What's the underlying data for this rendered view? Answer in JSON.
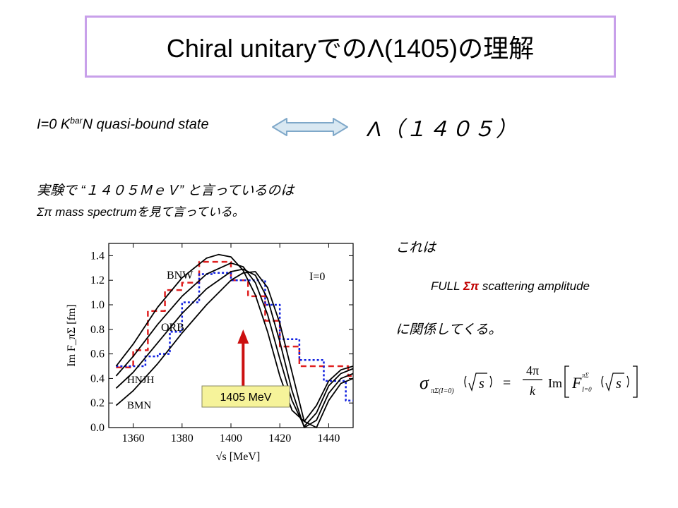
{
  "title": "Chiral unitaryでのΛ(1405)の理解",
  "state_line": {
    "prefix": "I=0 K",
    "sup": "bar",
    "suffix": "N quasi-bound state"
  },
  "lambda_label": "Λ（１４０５）",
  "experiment_line1": "実験で “１４０５ＭｅＶ” と言っているのは",
  "experiment_line2": "Σπ mass spectrumを見て言っている。",
  "kore": "これは",
  "full_prefix": "FULL ",
  "full_bold": "Σπ",
  "full_suffix": " scattering amplitude",
  "kankei": "に関係してくる。",
  "arrow_annotation": "1405 MeV",
  "colors": {
    "title_border": "#c8a0ea",
    "double_arrow_fill": "#d9e8f2",
    "double_arrow_stroke": "#7fa8c9",
    "annotation_fill": "#f6f39a",
    "red_arrow": "#cc1010",
    "series_red": "#e02020",
    "series_blue": "#1020e0"
  },
  "formula": {
    "sigma_sub": "πΣ(I=0)",
    "sqrt_s": "s",
    "eq": "=",
    "num": "4π",
    "den": "k",
    "im": "Im",
    "F": "F",
    "F_sup": "πΣ",
    "F_sub": "I=0"
  },
  "chart_data": {
    "type": "line",
    "xlabel": "√s [MeV]",
    "ylabel": "Im F_πΣ [fm]",
    "xlim": [
      1350,
      1450
    ],
    "ylim": [
      0.0,
      1.5
    ],
    "xticks": [
      1360,
      1380,
      1400,
      1420,
      1440
    ],
    "yticks": [
      0.0,
      0.2,
      0.4,
      0.6,
      0.8,
      1.0,
      1.2,
      1.4
    ],
    "xtick_labels": [
      "1360",
      "1380",
      "1400",
      "1420",
      "1440"
    ],
    "ytick_labels": [
      "0.0",
      "0.2",
      "0.4",
      "0.6",
      "0.8",
      "1.0",
      "1.2",
      "1.4"
    ],
    "annotations": [
      "BNW",
      "ORB",
      "HNJH",
      "BMN",
      "I=0"
    ],
    "series": [
      {
        "style": "dashed-red-step",
        "x": [
          1353,
          1360,
          1366,
          1373,
          1380,
          1387,
          1400,
          1407,
          1414,
          1420,
          1428,
          1438,
          1448,
          1450
        ],
        "y": [
          0.49,
          0.63,
          0.95,
          1.12,
          1.18,
          1.35,
          1.2,
          1.07,
          0.87,
          0.66,
          0.5,
          0.5,
          0.42,
          0.42
        ]
      },
      {
        "style": "dotted-blue-step",
        "x": [
          1353,
          1358,
          1365,
          1370,
          1375,
          1380,
          1387,
          1393,
          1400,
          1407,
          1414,
          1420,
          1428,
          1438,
          1447,
          1450
        ],
        "y": [
          0.5,
          0.5,
          0.58,
          0.6,
          0.78,
          1.02,
          1.25,
          1.26,
          1.2,
          1.2,
          1.0,
          0.72,
          0.55,
          0.38,
          0.22,
          0.22
        ]
      },
      {
        "style": "solid-black",
        "x": [
          1353,
          1360,
          1370,
          1380,
          1390,
          1395,
          1400,
          1405,
          1410,
          1415,
          1420,
          1425,
          1430,
          1435,
          1440,
          1445,
          1450
        ],
        "y": [
          0.5,
          0.68,
          0.98,
          1.22,
          1.38,
          1.41,
          1.39,
          1.28,
          1.08,
          0.78,
          0.42,
          0.14,
          0.05,
          0.18,
          0.38,
          0.47,
          0.5
        ]
      },
      {
        "style": "solid-black",
        "x": [
          1353,
          1360,
          1370,
          1380,
          1390,
          1400,
          1405,
          1410,
          1415,
          1420,
          1425,
          1430,
          1435,
          1440,
          1445,
          1450
        ],
        "y": [
          0.42,
          0.58,
          0.84,
          1.07,
          1.25,
          1.34,
          1.31,
          1.18,
          0.92,
          0.56,
          0.22,
          0.01,
          0.12,
          0.34,
          0.44,
          0.48
        ]
      },
      {
        "style": "solid-black",
        "x": [
          1353,
          1360,
          1370,
          1380,
          1390,
          1400,
          1405,
          1410,
          1415,
          1420,
          1425,
          1430,
          1435,
          1440,
          1445,
          1450
        ],
        "y": [
          0.32,
          0.45,
          0.69,
          0.93,
          1.13,
          1.27,
          1.29,
          1.24,
          1.05,
          0.7,
          0.3,
          0.0,
          0.06,
          0.28,
          0.4,
          0.44
        ]
      },
      {
        "style": "solid-black",
        "x": [
          1353,
          1360,
          1370,
          1380,
          1390,
          1400,
          1405,
          1410,
          1415,
          1420,
          1425,
          1430,
          1435,
          1440,
          1445,
          1450
        ],
        "y": [
          0.18,
          0.3,
          0.52,
          0.77,
          1.0,
          1.2,
          1.26,
          1.27,
          1.14,
          0.85,
          0.45,
          0.05,
          0.0,
          0.22,
          0.36,
          0.4
        ]
      }
    ],
    "arrow_x": 1405
  }
}
